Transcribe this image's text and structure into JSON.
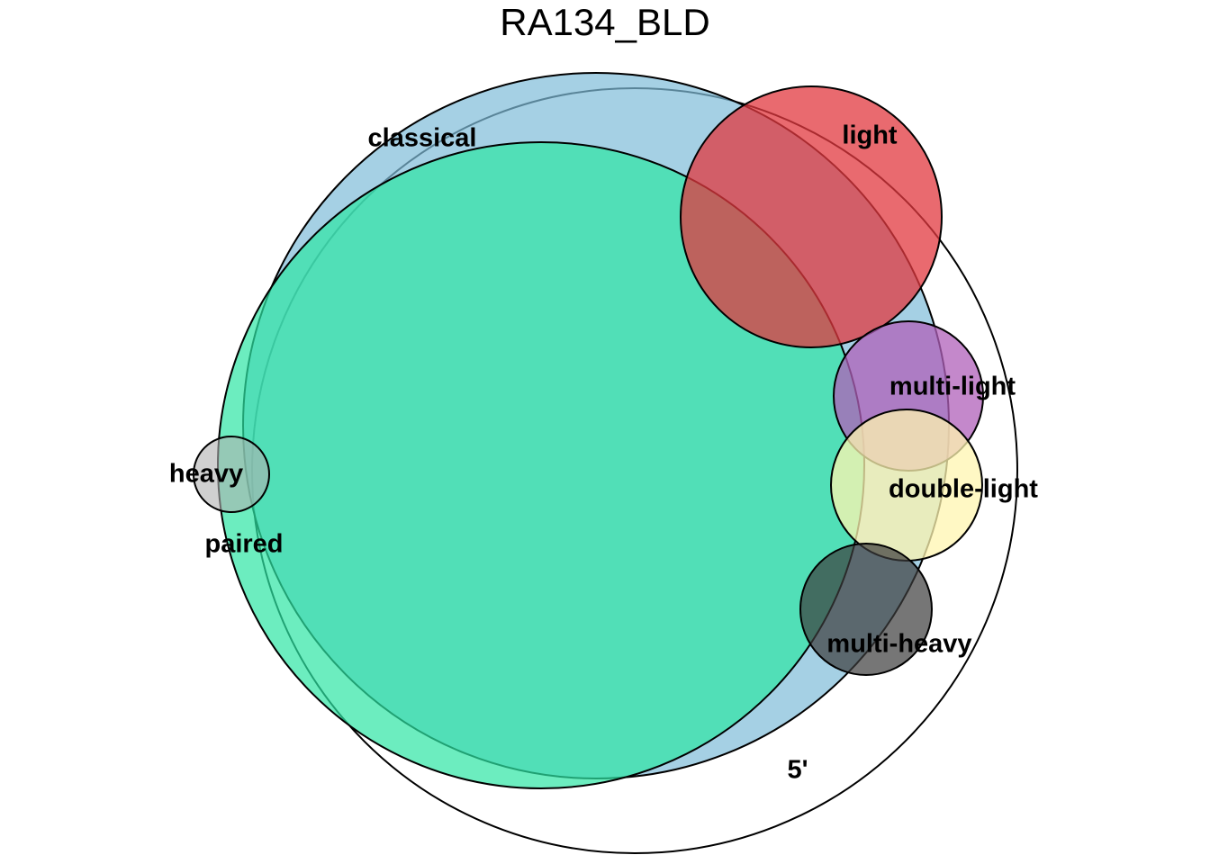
{
  "title": "RA134_BLD",
  "sets": [
    {
      "id": "five-prime",
      "label": "5'",
      "fill": "#ffffff",
      "opacity": 0
    },
    {
      "id": "classical",
      "label": "classical",
      "fill": "#7fbcd8",
      "opacity": 0.7
    },
    {
      "id": "paired",
      "label": "paired",
      "fill": "#2ee6a4",
      "opacity": 0.7
    },
    {
      "id": "light",
      "label": "light",
      "fill": "#e1383f",
      "opacity": 0.75
    },
    {
      "id": "multi-light",
      "label": "multi-light",
      "fill": "#b060ba",
      "opacity": 0.75
    },
    {
      "id": "double-light",
      "label": "double-light",
      "fill": "#fff6b0",
      "opacity": 0.75
    },
    {
      "id": "multi-heavy",
      "label": "multi-heavy",
      "fill": "#3c3c3c",
      "opacity": 0.7
    },
    {
      "id": "heavy",
      "label": "heavy",
      "fill": "#b0b0b0",
      "opacity": 0.6
    }
  ]
}
